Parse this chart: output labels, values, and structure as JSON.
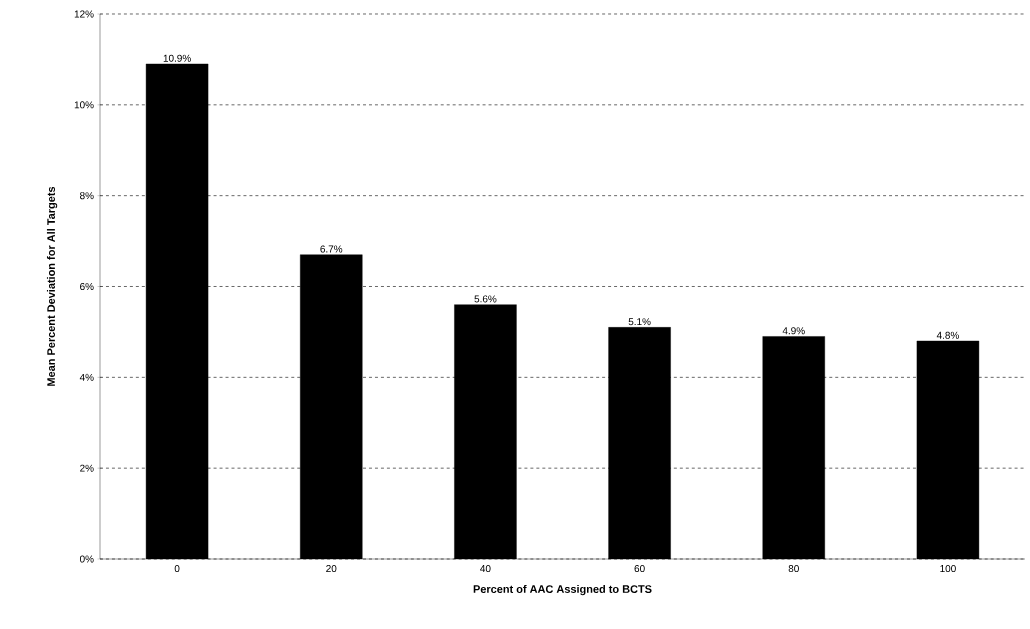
{
  "chart_data": {
    "type": "bar",
    "xlabel": "Percent of AAC Assigned to BCTS",
    "ylabel": "Mean Percent Deviation for All Targets",
    "categories": [
      "0",
      "20",
      "40",
      "60",
      "80",
      "100"
    ],
    "values": [
      10.9,
      6.7,
      5.6,
      5.1,
      4.9,
      4.8
    ],
    "value_labels": [
      "10.9%",
      "6.7%",
      "5.6%",
      "5.1%",
      "4.9%",
      "4.8%"
    ],
    "color": "#000000",
    "ylim": [
      0,
      12
    ],
    "yticks": [
      {
        "value": 0,
        "label": "0%"
      },
      {
        "value": 2,
        "label": "2%"
      },
      {
        "value": 4,
        "label": "4%"
      },
      {
        "value": 6,
        "label": "6%"
      },
      {
        "value": 8,
        "label": "8%"
      },
      {
        "value": 10,
        "label": "10%"
      },
      {
        "value": 12,
        "label": "12%"
      }
    ],
    "grid": "y"
  }
}
